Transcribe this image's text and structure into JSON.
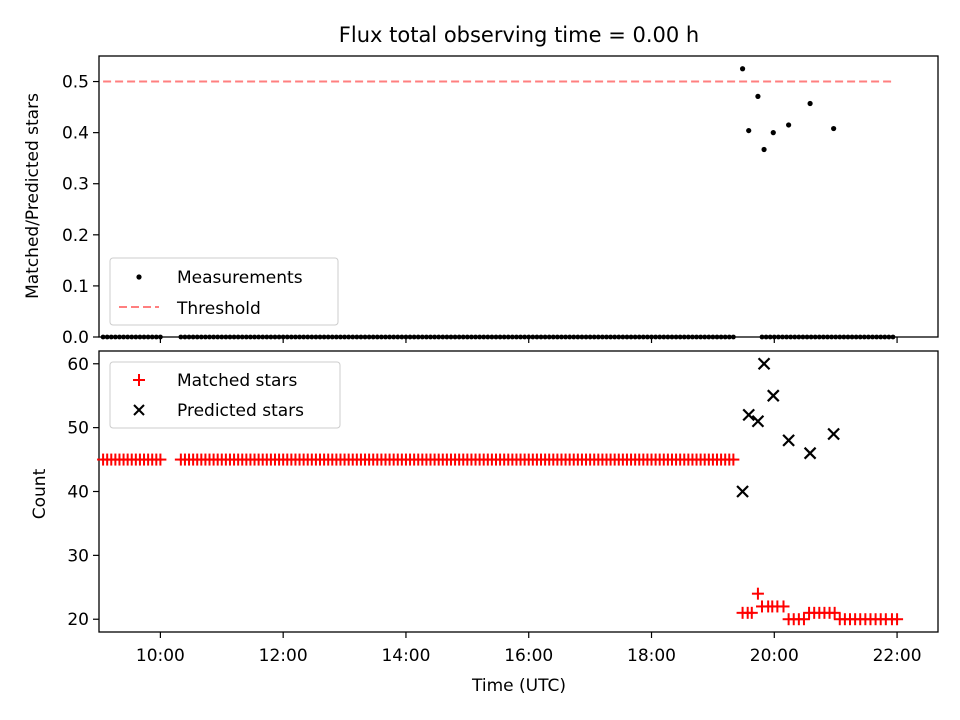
{
  "figure": {
    "title": "Flux total observing time = 0.00 h",
    "xlabel": "Time (UTC)"
  },
  "chart_data": [
    {
      "type": "scatter",
      "ylabel": "Matched/Predicted stars",
      "xlim": [
        "09:00",
        "22:40"
      ],
      "ylim": [
        0,
        0.55
      ],
      "yticks": [
        "0.0",
        "0.1",
        "0.2",
        "0.3",
        "0.4",
        "0.5"
      ],
      "grid": false,
      "legend_position": "lower-left",
      "threshold": {
        "name": "Threshold",
        "value": 0.5,
        "x_range": [
          "09:04",
          "21:58"
        ],
        "color": "#ff7f7f",
        "style": "dashed"
      },
      "series": [
        {
          "name": "Measurements",
          "color": "#000000",
          "marker": "dot",
          "x": [
            "19:29",
            "19:35",
            "19:44",
            "19:50",
            "19:59",
            "20:14",
            "20:35",
            "20:58"
          ],
          "y": [
            0.525,
            0.404,
            0.471,
            0.367,
            0.4,
            0.415,
            0.457,
            0.408
          ]
        }
      ],
      "zero_band": {
        "x_start": "09:04",
        "x_end": "21:58",
        "step_minutes": 4,
        "y": 0.0,
        "gaps": [
          [
            "10:04",
            "10:16"
          ],
          [
            "19:24",
            "19:44"
          ]
        ]
      }
    },
    {
      "type": "scatter",
      "ylabel": "Count",
      "xlim": [
        "09:00",
        "22:40"
      ],
      "ylim": [
        18,
        62
      ],
      "yticks": [
        "20",
        "30",
        "40",
        "50",
        "60"
      ],
      "xticks": [
        "10:00",
        "12:00",
        "14:00",
        "16:00",
        "18:00",
        "20:00",
        "22:00"
      ],
      "grid": false,
      "legend_position": "top-left",
      "series": [
        {
          "name": "Matched stars",
          "color": "#ff0000",
          "marker": "plus",
          "constant_run": {
            "x_start": "09:04",
            "x_end": "19:22",
            "step_minutes": 4,
            "y": 45,
            "gaps": [
              [
                "10:04",
                "10:16"
              ]
            ]
          },
          "x": [
            "19:29",
            "19:34",
            "19:38",
            "19:44",
            "19:48",
            "19:54",
            "19:58",
            "20:03",
            "20:09",
            "20:14",
            "20:19",
            "20:24",
            "20:29",
            "20:34",
            "20:39",
            "20:44",
            "20:49",
            "20:54",
            "20:59",
            "21:04",
            "21:09",
            "21:14",
            "21:19",
            "21:24",
            "21:29",
            "21:34",
            "21:39",
            "21:44",
            "21:49",
            "21:55",
            "22:00"
          ],
          "y": [
            21,
            21,
            21,
            24,
            22,
            22,
            22,
            22,
            22,
            20,
            20,
            20,
            20,
            21,
            21,
            21,
            21,
            21,
            21,
            20,
            20,
            20,
            20,
            20,
            20,
            20,
            20,
            20,
            20,
            20,
            20
          ]
        },
        {
          "name": "Predicted stars",
          "color": "#000000",
          "marker": "x",
          "x": [
            "19:29",
            "19:35",
            "19:44",
            "19:50",
            "19:59",
            "20:14",
            "20:35",
            "20:58"
          ],
          "y": [
            40,
            52,
            51,
            60,
            55,
            48,
            46,
            49
          ]
        }
      ]
    }
  ]
}
